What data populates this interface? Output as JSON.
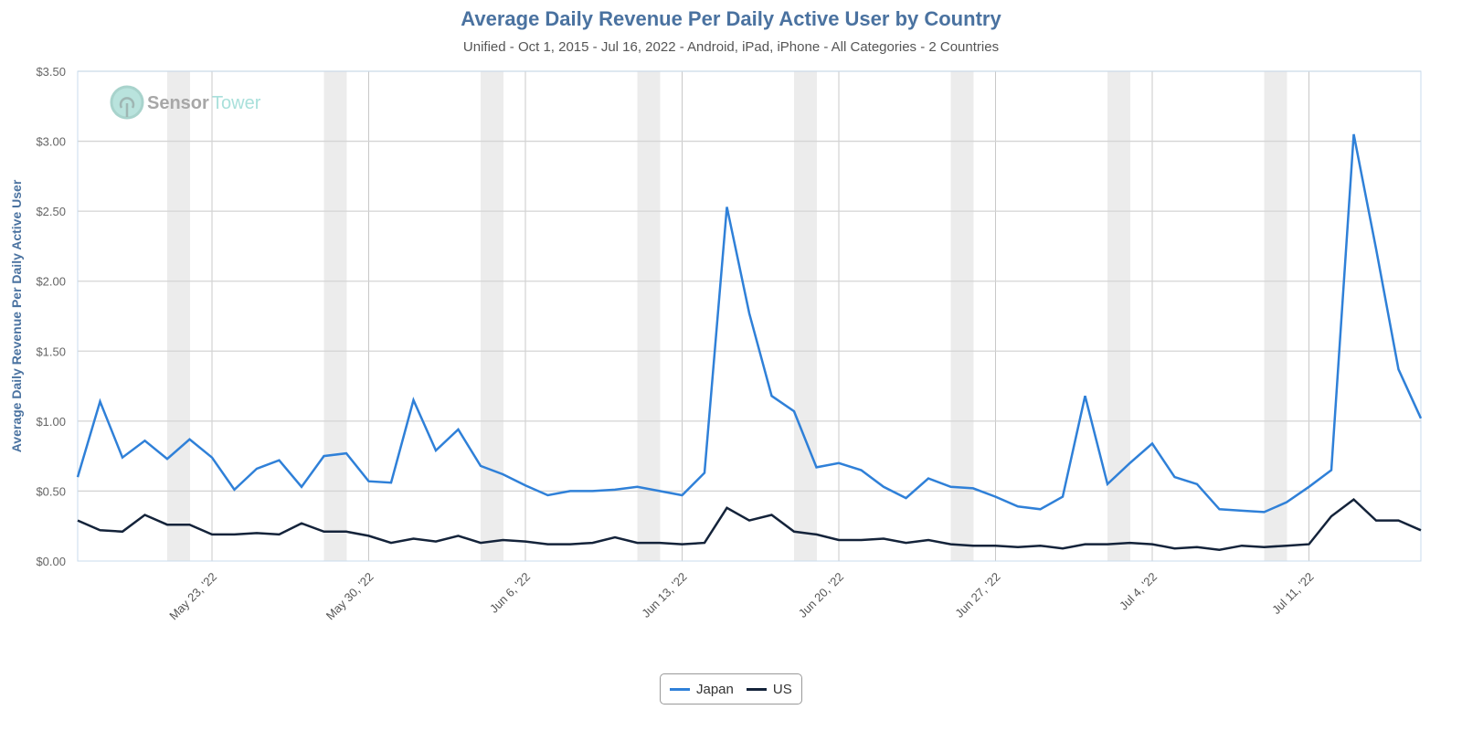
{
  "header": {
    "title": "Average Daily Revenue Per Daily Active User by Country",
    "subtitle": "Unified - Oct 1, 2015 - Jul 16, 2022 - Android, iPad, iPhone - All Categories - 2 Countries"
  },
  "watermark": {
    "brand_part1": "Sensor",
    "brand_part2": "Tower"
  },
  "legend": {
    "items": [
      {
        "label": "Japan",
        "color": "#2f80d8"
      },
      {
        "label": "US",
        "color": "#14233a"
      }
    ]
  },
  "chart_data": {
    "type": "line",
    "title": "Average Daily Revenue Per Daily Active User by Country",
    "subtitle": "Unified - Oct 1, 2015 - Jul 16, 2022 - Android, iPad, iPhone - All Categories - 2 Countries",
    "xlabel": "",
    "ylabel": "Average Daily Revenue Per Daily Active User",
    "ylim": [
      0,
      3.5
    ],
    "y_ticks": [
      "$0.00",
      "$0.50",
      "$1.00",
      "$1.50",
      "$2.00",
      "$2.50",
      "$3.00",
      "$3.50"
    ],
    "y_tick_values": [
      0,
      0.5,
      1.0,
      1.5,
      2.0,
      2.5,
      3.0,
      3.5
    ],
    "x_start": "2022-05-17",
    "x_end": "2022-07-16",
    "x_tick_labels": [
      "May 23, '22",
      "May 30, '22",
      "Jun 6, '22",
      "Jun 13, '22",
      "Jun 20, '22",
      "Jun 27, '22",
      "Jul 4, '22",
      "Jul 11, '22"
    ],
    "x_tick_day_index": [
      6,
      13,
      20,
      27,
      34,
      41,
      48,
      55
    ],
    "weekend_shading": true,
    "grid": true,
    "legend_position": "bottom-center",
    "series": [
      {
        "name": "Japan",
        "color": "#2f80d8",
        "values": [
          0.6,
          1.14,
          0.74,
          0.86,
          0.73,
          0.87,
          0.74,
          0.51,
          0.66,
          0.72,
          0.53,
          0.75,
          0.77,
          0.57,
          0.56,
          1.15,
          0.79,
          0.94,
          0.68,
          0.62,
          0.54,
          0.47,
          0.5,
          0.5,
          0.51,
          0.53,
          0.5,
          0.47,
          0.63,
          2.53,
          1.77,
          1.18,
          1.07,
          0.67,
          0.7,
          0.65,
          0.53,
          0.45,
          0.59,
          0.53,
          0.52,
          0.46,
          0.39,
          0.37,
          0.46,
          1.18,
          0.55,
          0.7,
          0.84,
          0.6,
          0.55,
          0.37,
          0.36,
          0.35,
          0.42,
          0.53,
          0.65,
          3.05,
          2.23,
          1.37,
          1.02
        ]
      },
      {
        "name": "US",
        "color": "#14233a",
        "values": [
          0.29,
          0.22,
          0.21,
          0.33,
          0.26,
          0.26,
          0.19,
          0.19,
          0.2,
          0.19,
          0.27,
          0.21,
          0.21,
          0.18,
          0.13,
          0.16,
          0.14,
          0.18,
          0.13,
          0.15,
          0.14,
          0.12,
          0.12,
          0.13,
          0.17,
          0.13,
          0.13,
          0.12,
          0.13,
          0.38,
          0.29,
          0.33,
          0.21,
          0.19,
          0.15,
          0.15,
          0.16,
          0.13,
          0.15,
          0.12,
          0.11,
          0.11,
          0.1,
          0.11,
          0.09,
          0.12,
          0.12,
          0.13,
          0.12,
          0.09,
          0.1,
          0.08,
          0.11,
          0.1,
          0.11,
          0.12,
          0.32,
          0.44,
          0.29,
          0.29,
          0.22
        ]
      }
    ]
  }
}
